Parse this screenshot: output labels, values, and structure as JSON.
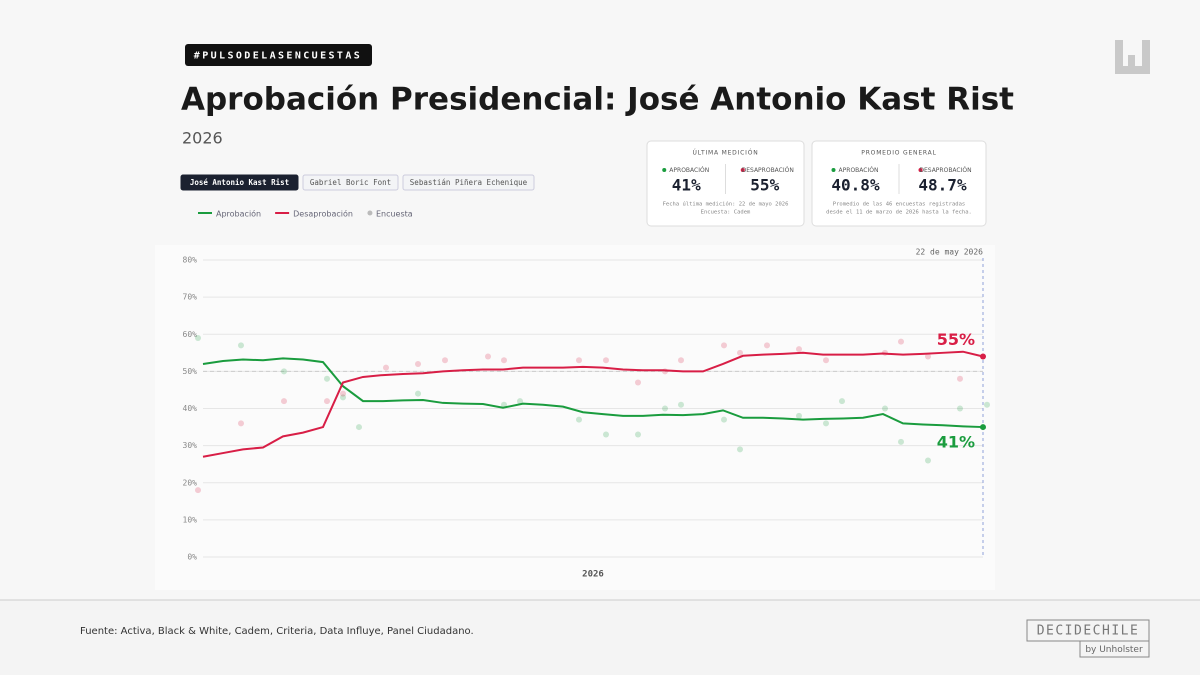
{
  "header": {
    "tag": "#PULSODELASENCUESTAS",
    "title": "Aprobación Presidencial: José Antonio Kast Rist",
    "subtitle": "2026"
  },
  "tabs": [
    "José Antonio Kast Rist",
    "Gabriel Boric Font",
    "Sebastián Piñera Echenique"
  ],
  "stats": [
    {
      "title": "ÚLTIMA MEDICIÓN",
      "items": [
        {
          "label": "APROBACIÓN",
          "value": "41%"
        },
        {
          "label": "DESAPROBACIÓN",
          "value": "55%"
        }
      ],
      "note": [
        "Fecha última medición: 22 de mayo 2026",
        "Encuesta: Cadem"
      ]
    },
    {
      "title": "PROMEDIO GENERAL",
      "items": [
        {
          "label": "APROBACIÓN",
          "value": "40.8%"
        },
        {
          "label": "DESAPROBACIÓN",
          "value": "48.7%"
        }
      ],
      "note": [
        "Promedio de las 46 encuestas registradas",
        "desde el 11 de marzo de 2026 hasta la fecha."
      ]
    }
  ],
  "chart_data": {
    "type": "line",
    "x_label": "2026",
    "end_date": "22 de may 2026",
    "categories": [
      null,
      null,
      null,
      null,
      null,
      null,
      null,
      null,
      null,
      null,
      null,
      null,
      null,
      null,
      null,
      null,
      null,
      null,
      null,
      null,
      null,
      null,
      null,
      null,
      null,
      null,
      null,
      null,
      null,
      null,
      null,
      null,
      null,
      null,
      null,
      null,
      null,
      null,
      null,
      null
    ],
    "ylim": [
      0,
      80
    ],
    "yticks": [
      {
        "value": 0,
        "label": "0%"
      },
      {
        "value": 10,
        "label": "10%"
      },
      {
        "value": 20,
        "label": "20%"
      },
      {
        "value": 30,
        "label": "30%"
      },
      {
        "value": 40,
        "label": "40%"
      },
      {
        "value": 50,
        "label": "50%"
      },
      {
        "value": 60,
        "label": "60%"
      },
      {
        "value": 70,
        "label": "70%"
      },
      {
        "value": 80,
        "label": "80%"
      }
    ],
    "grid": true,
    "reference_line": 50,
    "survey_legend": {
      "name": "Encuesta",
      "color": "#bbbbbb"
    },
    "series": [
      {
        "name": "Aprobación",
        "color": "#1a9c3e",
        "end_label": "41%",
        "values": [
          52,
          52.8,
          53.2,
          53,
          53.5,
          53.2,
          52.5,
          46,
          42,
          42,
          42.2,
          42.3,
          41.5,
          41.3,
          41.2,
          40.2,
          41.3,
          41,
          40.5,
          39,
          38.5,
          38,
          38,
          38.3,
          38.2,
          38.5,
          39.5,
          37.5,
          37.5,
          37.3,
          37,
          37.2,
          37.3,
          37.5,
          38.5,
          36,
          35.7,
          35.5,
          35.2,
          35
        ],
        "surveys": [
          59,
          null,
          57,
          null,
          50,
          null,
          48,
          43,
          35,
          null,
          null,
          44,
          null,
          null,
          null,
          41,
          42,
          null,
          null,
          37,
          33,
          null,
          33,
          40,
          41,
          null,
          37,
          29,
          null,
          null,
          38,
          36,
          42,
          null,
          40,
          31,
          26,
          null,
          40,
          41
        ]
      },
      {
        "name": "Desaprobación",
        "color": "#d81e46",
        "end_label": "55%",
        "values": [
          27,
          28,
          29,
          29.5,
          32.5,
          33.5,
          35,
          47,
          48.5,
          49,
          49.3,
          49.5,
          50,
          50.3,
          50.5,
          50.5,
          51,
          51,
          51,
          51.2,
          51,
          50.5,
          50.3,
          50.3,
          50,
          50,
          52,
          54.2,
          54.5,
          54.7,
          55,
          54.5,
          54.5,
          54.5,
          54.8,
          54.5,
          54.7,
          55,
          55.3,
          54
        ],
        "surveys": [
          18,
          null,
          36,
          null,
          42,
          null,
          42,
          44,
          null,
          51,
          null,
          52,
          53,
          null,
          54,
          53,
          null,
          null,
          null,
          53,
          53,
          null,
          47,
          50,
          53,
          null,
          57,
          55,
          57,
          null,
          56,
          53,
          null,
          null,
          55,
          58,
          54,
          null,
          48,
          null
        ]
      }
    ]
  },
  "footer": {
    "source": "Fuente: Activa, Black & White, Cadem, Criteria, Data Influye, Panel Ciudadano.",
    "brand": "DECIDECHILE",
    "byline": "by Unholster"
  }
}
